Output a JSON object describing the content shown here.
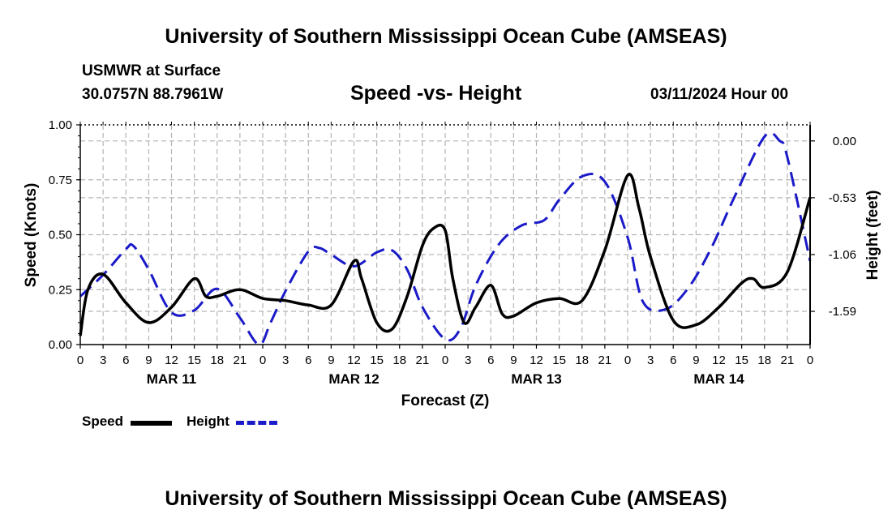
{
  "page": {
    "title_top": "University of Southern Mississippi Ocean Cube (AMSEAS)",
    "title_bottom": "University of Southern Mississippi Ocean Cube (AMSEAS)",
    "station": "USMWR at Surface",
    "coords": "30.0757N  88.7961W",
    "plot_title": "Speed -vs- Height",
    "date": "03/11/2024 Hour 00"
  },
  "legend": {
    "speed_label": "Speed",
    "height_label": "Height"
  },
  "colors": {
    "speed": "#000000",
    "height": "#1a1ac8",
    "grid": "#b4b4b4"
  },
  "chart_data": {
    "type": "line",
    "title": "Speed -vs- Height",
    "xlabel": "Forecast (Z)",
    "ylabel": "Speed (Knots)",
    "y2label": "Height (feet)",
    "xlim": [
      0,
      96
    ],
    "ylim": [
      0,
      1.0
    ],
    "y2lim": [
      -1.9,
      0.15
    ],
    "x_tick_labels": [
      "0",
      "3",
      "6",
      "9",
      "12",
      "15",
      "18",
      "21",
      "0",
      "3",
      "6",
      "9",
      "12",
      "15",
      "18",
      "21",
      "0",
      "3",
      "6",
      "9",
      "12",
      "15",
      "18",
      "21",
      "0",
      "3",
      "6",
      "9",
      "12",
      "15",
      "18",
      "21",
      "0"
    ],
    "day_labels": [
      {
        "x": 12,
        "label": "MAR 11"
      },
      {
        "x": 36,
        "label": "MAR 12"
      },
      {
        "x": 60,
        "label": "MAR 13"
      },
      {
        "x": 84,
        "label": "MAR 14"
      }
    ],
    "y_ticks": [
      0.0,
      0.25,
      0.5,
      0.75,
      1.0
    ],
    "y_tick_labels": [
      "0.00",
      "0.25",
      "0.50",
      "0.75",
      "1.00"
    ],
    "y2_ticks": [
      0.0,
      -0.53,
      -1.06,
      -1.59
    ],
    "y2_tick_labels": [
      "0.00",
      "-0.53",
      "-1.06",
      "-1.59"
    ],
    "grid": true,
    "series": [
      {
        "name": "Speed",
        "axis": "left",
        "style": "solid",
        "x": [
          0,
          1,
          3,
          6,
          9,
          12,
          15,
          16.5,
          18,
          21,
          24,
          27,
          30,
          33,
          36,
          37,
          39,
          41,
          43,
          45,
          46.5,
          48,
          49,
          50.5,
          52,
          54,
          55.5,
          57,
          60,
          63,
          66,
          69,
          72,
          73.5,
          75,
          78,
          81,
          84,
          87,
          88.5,
          90,
          93,
          96
        ],
        "values": [
          0.04,
          0.25,
          0.32,
          0.19,
          0.1,
          0.17,
          0.3,
          0.22,
          0.22,
          0.25,
          0.21,
          0.2,
          0.18,
          0.18,
          0.38,
          0.3,
          0.1,
          0.07,
          0.22,
          0.45,
          0.53,
          0.52,
          0.3,
          0.1,
          0.17,
          0.27,
          0.14,
          0.13,
          0.19,
          0.21,
          0.2,
          0.43,
          0.77,
          0.62,
          0.4,
          0.11,
          0.09,
          0.17,
          0.28,
          0.3,
          0.26,
          0.33,
          0.67
        ]
      },
      {
        "name": "Height",
        "axis": "right",
        "style": "dashed",
        "x": [
          0,
          3,
          6,
          7,
          9,
          12,
          15,
          18,
          21,
          23.5,
          25,
          27,
          30,
          31.5,
          33,
          36,
          39,
          41,
          43,
          45,
          48,
          50,
          52,
          55,
          58,
          61,
          63,
          66,
          69,
          72,
          74,
          77,
          80,
          83,
          86,
          90,
          92,
          93,
          96
        ],
        "values": [
          -1.45,
          -1.25,
          -1.01,
          -0.98,
          -1.2,
          -1.6,
          -1.58,
          -1.38,
          -1.65,
          -1.9,
          -1.7,
          -1.4,
          -1.03,
          -1.0,
          -1.06,
          -1.17,
          -1.04,
          -1.02,
          -1.2,
          -1.55,
          -1.85,
          -1.75,
          -1.35,
          -0.97,
          -0.79,
          -0.74,
          -0.55,
          -0.33,
          -0.38,
          -0.9,
          -1.5,
          -1.57,
          -1.37,
          -1.0,
          -0.53,
          0.04,
          0.0,
          -0.15,
          -1.12
        ]
      }
    ]
  }
}
